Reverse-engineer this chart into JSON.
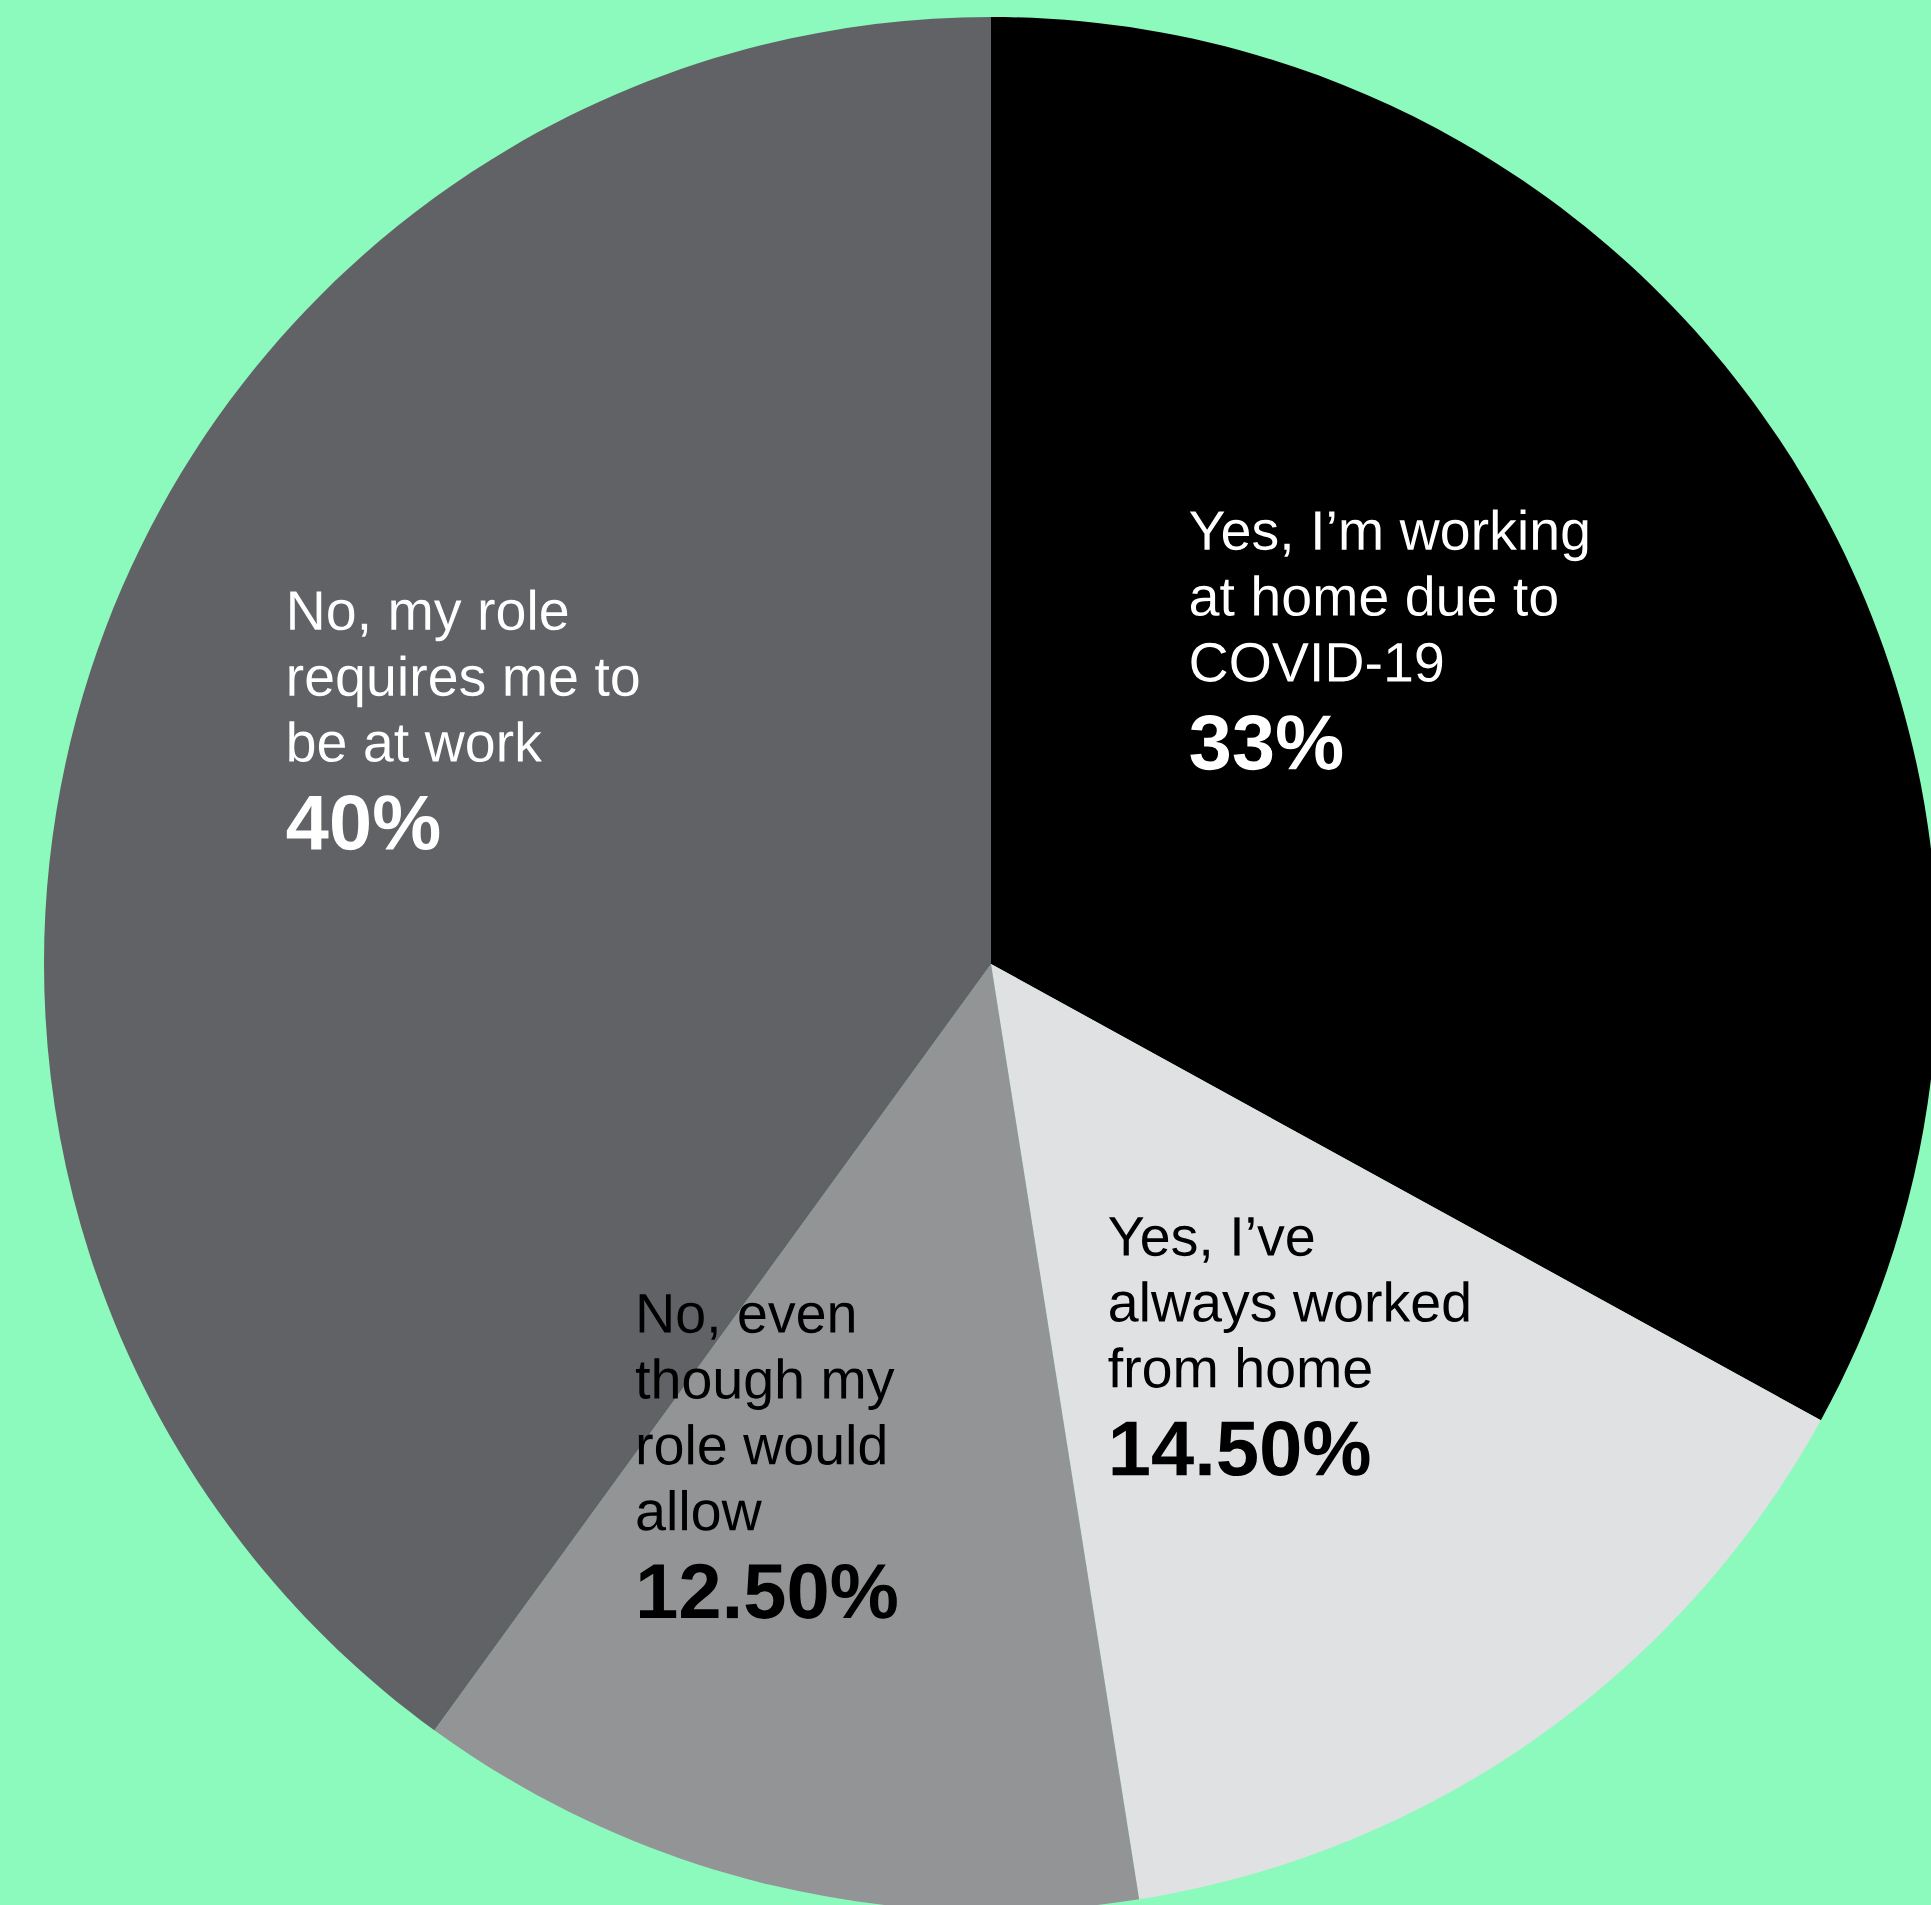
{
  "chart_data": {
    "type": "pie",
    "categories": [
      "Yes, I’m working\nat home due to\nCOVID-19",
      "Yes, I’ve\nalways worked\nfrom home",
      "No, even\nthough my\nrole would\nallow",
      "No, my role\nrequires me to\nbe at work"
    ],
    "values": [
      33,
      14.5,
      12.5,
      40
    ],
    "value_labels": [
      "33%",
      "14.50%",
      "12.50%",
      "40%"
    ],
    "colors": [
      "#000000",
      "#e0e1e3",
      "#939496",
      "#616266"
    ]
  }
}
